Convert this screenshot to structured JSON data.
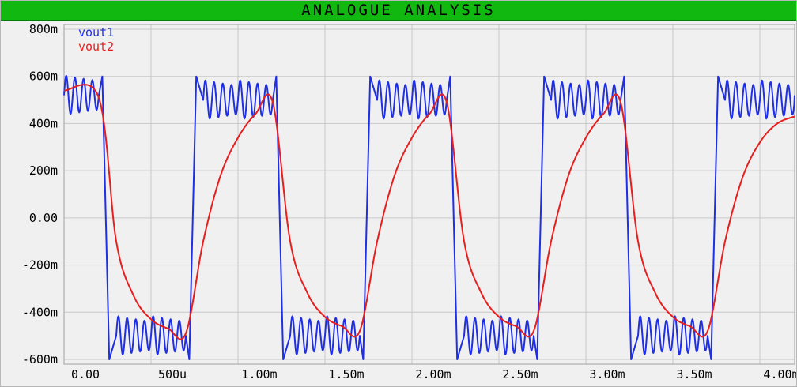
{
  "window": {
    "title": "ANALOGUE ANALYSIS"
  },
  "colors": {
    "title_bar": "#10b810",
    "plot_background": "#f0f0f0",
    "grid": "#c8c8c8",
    "axis_text": "#000000",
    "vout1": "#1f2fe6",
    "vout2": "#e81e1e"
  },
  "chart_data": {
    "type": "line",
    "title": "ANALOGUE ANALYSIS",
    "xlabel": "",
    "ylabel": "",
    "xlim": [
      0,
      0.0042
    ],
    "ylim": [
      -0.62,
      0.82
    ],
    "grid": true,
    "legend_position": "top-left",
    "x_ticks": [
      {
        "value": 0.0,
        "label": "0.00"
      },
      {
        "value": 0.0005,
        "label": "500u"
      },
      {
        "value": 0.001,
        "label": "1.00m"
      },
      {
        "value": 0.0015,
        "label": "1.50m"
      },
      {
        "value": 0.002,
        "label": "2.00m"
      },
      {
        "value": 0.0025,
        "label": "2.50m"
      },
      {
        "value": 0.003,
        "label": "3.00m"
      },
      {
        "value": 0.0035,
        "label": "3.50m"
      },
      {
        "value": 0.004,
        "label": "4.00m"
      }
    ],
    "y_ticks": [
      {
        "value": 0.8,
        "label": "800m"
      },
      {
        "value": 0.6,
        "label": "600m"
      },
      {
        "value": 0.4,
        "label": "400m"
      },
      {
        "value": 0.2,
        "label": "200m"
      },
      {
        "value": 0.0,
        "label": "0.00"
      },
      {
        "value": -0.2,
        "label": "-200m"
      },
      {
        "value": -0.4,
        "label": "-400m"
      },
      {
        "value": -0.6,
        "label": "-600m"
      }
    ],
    "series": [
      {
        "name": "vout1",
        "color": "#1f2fe6",
        "description_shape": "square wave with ringing, period 1.00m",
        "x": [
          0,
          0.0002,
          0.00022,
          0.00026,
          0.0003,
          0.0005,
          0.0007,
          0.00072,
          0.00076,
          0.0008,
          0.001,
          0.0012,
          0.00122,
          0.00126,
          0.0013,
          0.0015,
          0.0017,
          0.00172,
          0.00176,
          0.0018,
          0.002,
          0.0022,
          0.00222,
          0.00226,
          0.0023,
          0.0025,
          0.0027,
          0.00272,
          0.00276,
          0.0028,
          0.003,
          0.0032,
          0.00322,
          0.00326,
          0.0033,
          0.0035,
          0.0037,
          0.00372,
          0.00376,
          0.0038,
          0.004,
          0.0042
        ],
        "y": [
          0.52,
          0.52,
          0.6,
          -0.6,
          -0.5,
          -0.5,
          -0.5,
          -0.6,
          0.6,
          0.5,
          0.5,
          0.5,
          0.6,
          -0.6,
          -0.5,
          -0.5,
          -0.5,
          -0.6,
          0.6,
          0.5,
          0.5,
          0.5,
          0.6,
          -0.6,
          -0.5,
          -0.5,
          -0.5,
          -0.6,
          0.6,
          0.5,
          0.5,
          0.5,
          0.6,
          -0.6,
          -0.5,
          -0.5,
          -0.5,
          -0.6,
          0.6,
          0.5,
          0.5,
          0.52
        ]
      },
      {
        "name": "vout2",
        "color": "#e81e1e",
        "description_shape": "RC-smoothed square wave, period 1.00m",
        "x": [
          0,
          0.0002,
          0.0003,
          0.0004,
          0.0005,
          0.0006,
          0.0007,
          0.0008,
          0.0009,
          0.001,
          0.0011,
          0.0012,
          0.0013,
          0.0014,
          0.0015,
          0.0016,
          0.0017,
          0.0018,
          0.0019,
          0.002,
          0.0021,
          0.0022,
          0.0023,
          0.0024,
          0.0025,
          0.0026,
          0.0027,
          0.0028,
          0.0029,
          0.003,
          0.0031,
          0.0032,
          0.0033,
          0.0034,
          0.0035,
          0.0036,
          0.0037,
          0.0038,
          0.0039,
          0.004,
          0.0041,
          0.0042
        ],
        "y": [
          0.54,
          0.51,
          -0.1,
          -0.33,
          -0.43,
          -0.47,
          -0.49,
          -0.1,
          0.18,
          0.34,
          0.44,
          0.49,
          -0.1,
          -0.32,
          -0.42,
          -0.46,
          -0.48,
          -0.1,
          0.18,
          0.34,
          0.44,
          0.49,
          -0.1,
          -0.32,
          -0.42,
          -0.46,
          -0.48,
          -0.1,
          0.18,
          0.34,
          0.44,
          0.49,
          -0.1,
          -0.32,
          -0.42,
          -0.46,
          -0.48,
          -0.1,
          0.17,
          0.32,
          0.4,
          0.43
        ]
      }
    ]
  }
}
